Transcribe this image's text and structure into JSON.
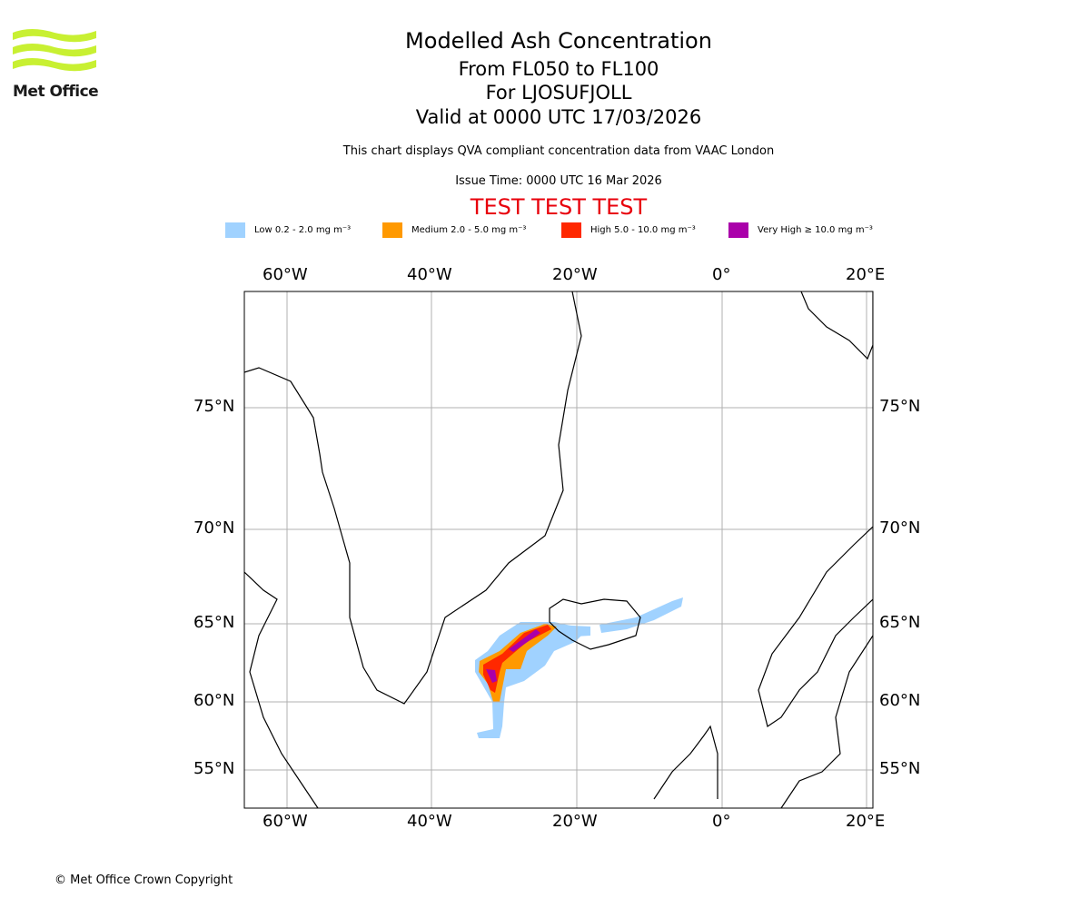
{
  "header": {
    "logo_text": "Met Office",
    "title": "Modelled Ash Concentration",
    "levels": "From FL050 to FL100",
    "volcano": "For LJOSUFJOLL",
    "valid": "Valid at 0000 UTC 17/03/2026",
    "note": "This chart displays QVA compliant concentration data from VAAC London",
    "issue": "Issue Time: 0000 UTC 16 Mar 2026",
    "test_banner": "TEST TEST TEST"
  },
  "legend": [
    {
      "label": "Low 0.2 - 2.0 mg m⁻³",
      "color": "#a0d2ff"
    },
    {
      "label": "Medium 2.0 - 5.0 mg m⁻³",
      "color": "#ff9900"
    },
    {
      "label": "High 5.0 - 10.0 mg m⁻³",
      "color": "#ff2800"
    },
    {
      "label": "Very High ≥ 10.0 mg m⁻³",
      "color": "#aa00aa"
    }
  ],
  "map": {
    "lon_ticks": [
      "60°W",
      "40°W",
      "20°W",
      "0°",
      "20°E"
    ],
    "lat_ticks": [
      "75°N",
      "70°N",
      "65°N",
      "60°N",
      "55°N"
    ]
  },
  "footer": {
    "copyright": "© Met Office Crown Copyright"
  }
}
